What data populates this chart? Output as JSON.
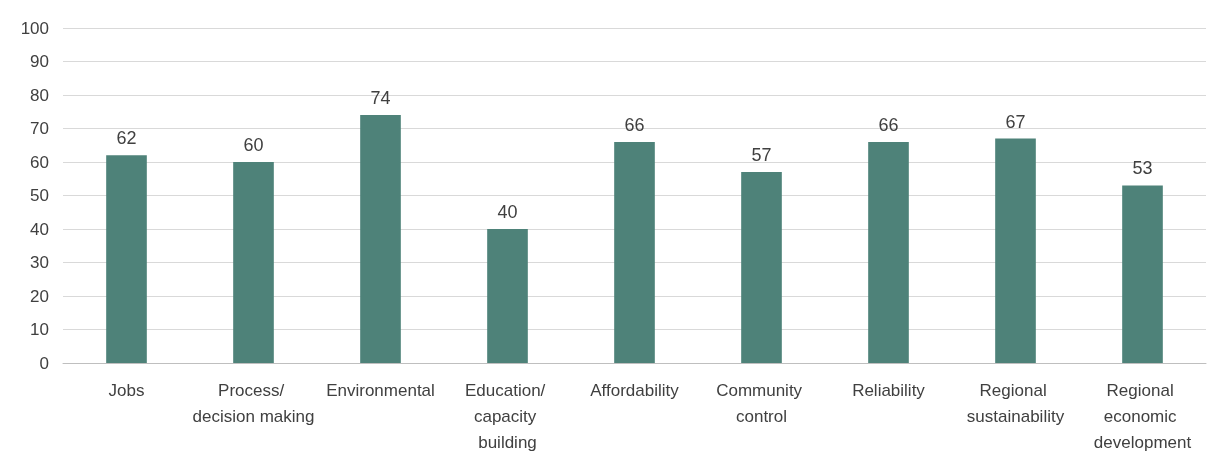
{
  "chart_data": {
    "type": "bar",
    "categories": [
      "Jobs",
      "Process/ decision making",
      "Environmental",
      "Education/ capacity building",
      "Affordability",
      "Community control",
      "Reliability",
      "Regional sustainability",
      "Regional economic development"
    ],
    "values": [
      62,
      60,
      74,
      40,
      66,
      57,
      66,
      67,
      53
    ],
    "color": "#4e8279",
    "ylim": [
      0,
      100
    ],
    "yticks": [
      0,
      10,
      20,
      30,
      40,
      50,
      60,
      70,
      80,
      90,
      100
    ],
    "grid": "y",
    "data_labels": true
  }
}
